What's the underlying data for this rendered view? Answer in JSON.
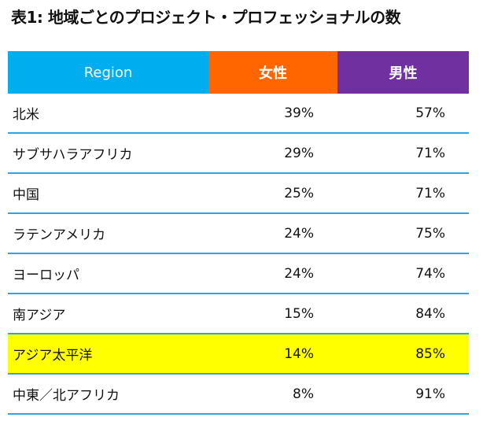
{
  "title": "表1: 地域ごとのプロジェクト・プロフェッショナルの数",
  "header": {
    "region": "Region",
    "female": "女性",
    "male": "男性"
  },
  "colors": {
    "region_header": "#00adef",
    "female_header": "#ff6600",
    "male_header": "#7030a0",
    "highlight": "#ffff00",
    "divider": "#2aa5e8"
  },
  "rows": [
    {
      "region": "北米",
      "female": "39%",
      "male": "57%"
    },
    {
      "region": "サブサハラアフリカ",
      "female": "29%",
      "male": "71%"
    },
    {
      "region": "中国",
      "female": "25%",
      "male": "71%"
    },
    {
      "region": "ラテンアメリカ",
      "female": "24%",
      "male": "75%"
    },
    {
      "region": "ヨーロッパ",
      "female": "24%",
      "male": "74%"
    },
    {
      "region": "南アジア",
      "female": "15%",
      "male": "84%"
    },
    {
      "region": "アジア太平洋",
      "female": "14%",
      "male": "85%"
    },
    {
      "region": "中東／北アフリカ",
      "female": "8%",
      "male": "91%"
    }
  ]
}
